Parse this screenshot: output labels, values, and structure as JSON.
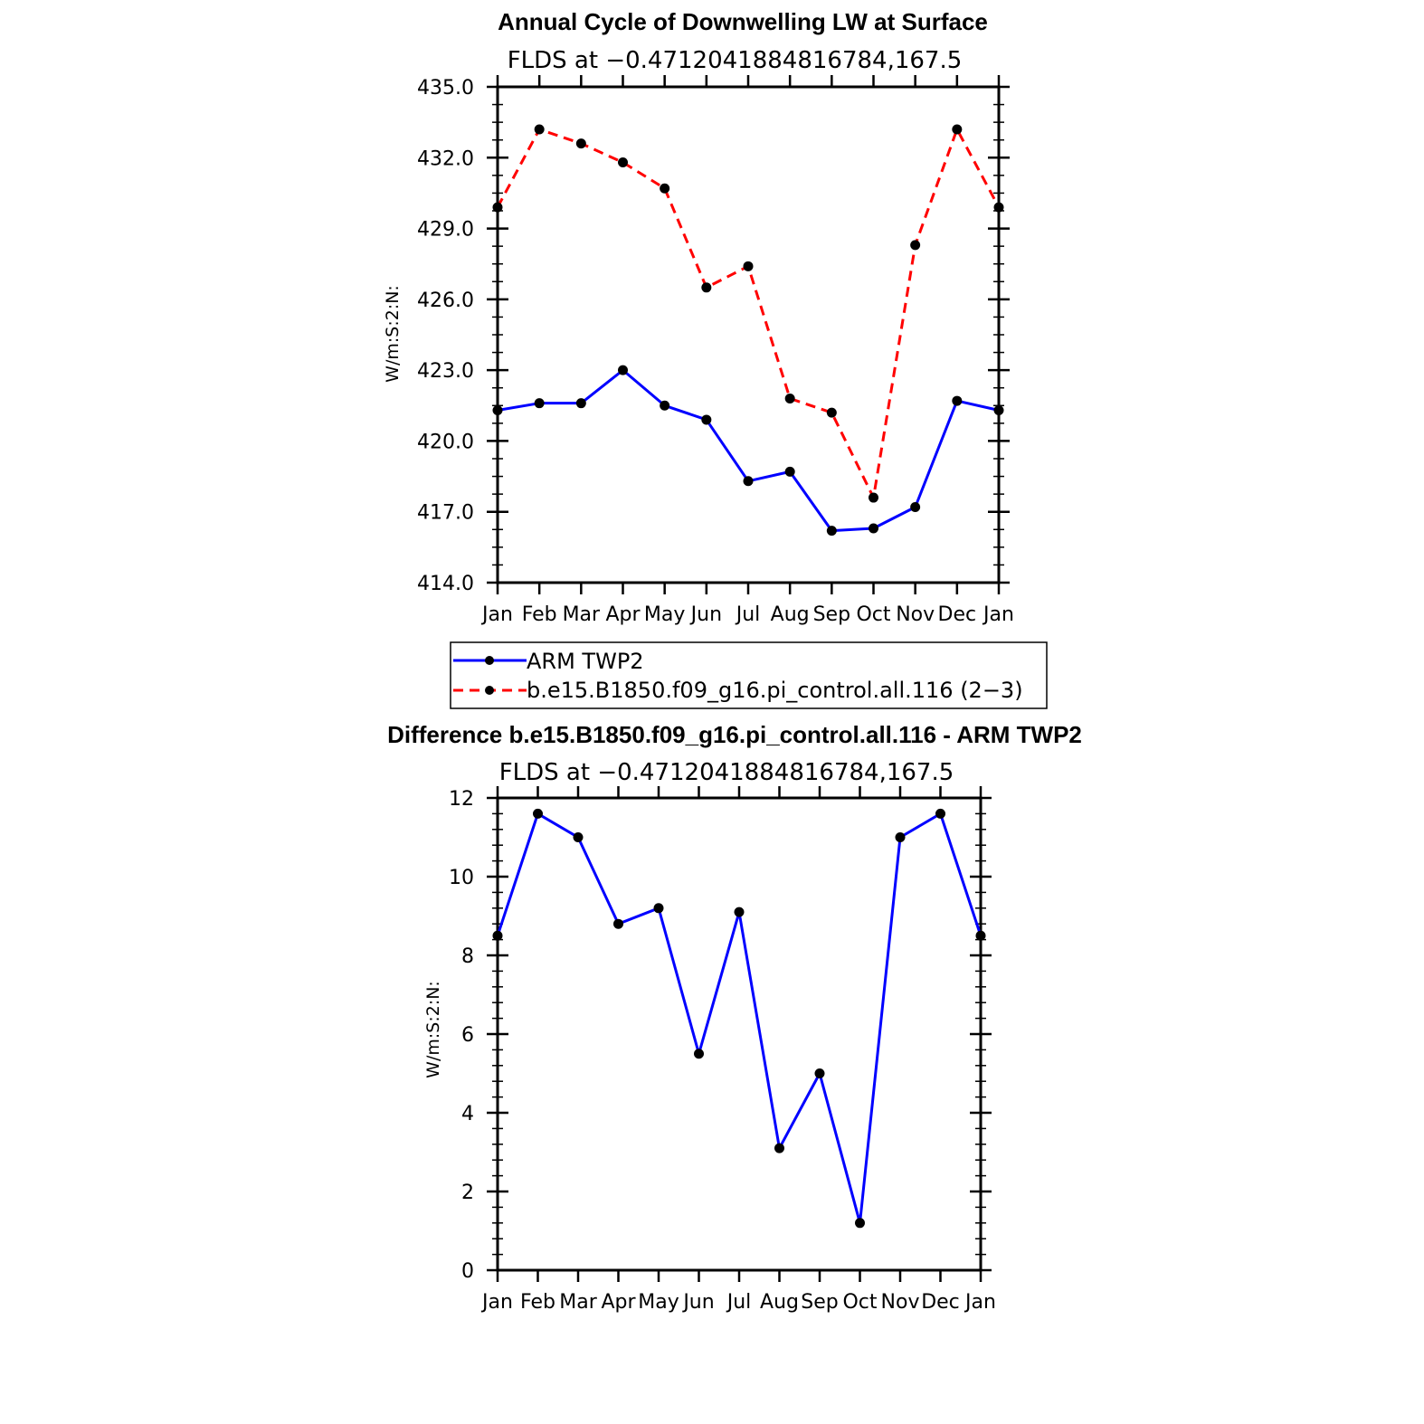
{
  "chart_data": [
    {
      "type": "line",
      "title": "Annual Cycle of Downwelling LW at Surface",
      "subtitle": "FLDS at −0.4712041884816784,167.5",
      "xlabel": "",
      "ylabel": "W/m:S:2:N:",
      "categories": [
        "Jan",
        "Feb",
        "Mar",
        "Apr",
        "May",
        "Jun",
        "Jul",
        "Aug",
        "Sep",
        "Oct",
        "Nov",
        "Dec",
        "Jan"
      ],
      "ylim": [
        414.0,
        435.0
      ],
      "yticks": [
        "414.0",
        "417.0",
        "420.0",
        "423.0",
        "426.0",
        "429.0",
        "432.0",
        "435.0"
      ],
      "series": [
        {
          "name": "ARM TWP2",
          "color": "#0000ff",
          "dash": "solid",
          "values": [
            421.3,
            421.6,
            421.6,
            423.0,
            421.5,
            420.9,
            418.3,
            418.7,
            416.2,
            416.3,
            417.2,
            421.7,
            421.3
          ]
        },
        {
          "name": "b.e15.B1850.f09_g16.pi_control.all.116 (2−3)",
          "color": "#ff0000",
          "dash": "dashed",
          "values": [
            429.9,
            433.2,
            432.6,
            431.8,
            430.7,
            426.5,
            427.4,
            421.8,
            421.2,
            417.6,
            428.3,
            433.2,
            429.9
          ]
        }
      ],
      "legend_position": "below"
    },
    {
      "type": "line",
      "title": "Difference b.e15.B1850.f09_g16.pi_control.all.116 - ARM TWP2",
      "subtitle": "FLDS at −0.4712041884816784,167.5",
      "xlabel": "",
      "ylabel": "W/m:S:2:N:",
      "categories": [
        "Jan",
        "Feb",
        "Mar",
        "Apr",
        "May",
        "Jun",
        "Jul",
        "Aug",
        "Sep",
        "Oct",
        "Nov",
        "Dec",
        "Jan"
      ],
      "ylim": [
        0,
        12
      ],
      "yticks": [
        "0",
        "2",
        "4",
        "6",
        "8",
        "10",
        "12"
      ],
      "series": [
        {
          "color": "#0000ff",
          "dash": "solid",
          "values": [
            8.5,
            11.6,
            11.0,
            8.8,
            9.2,
            5.5,
            9.1,
            3.1,
            5.0,
            1.2,
            11.0,
            11.6,
            8.5
          ]
        }
      ]
    }
  ]
}
